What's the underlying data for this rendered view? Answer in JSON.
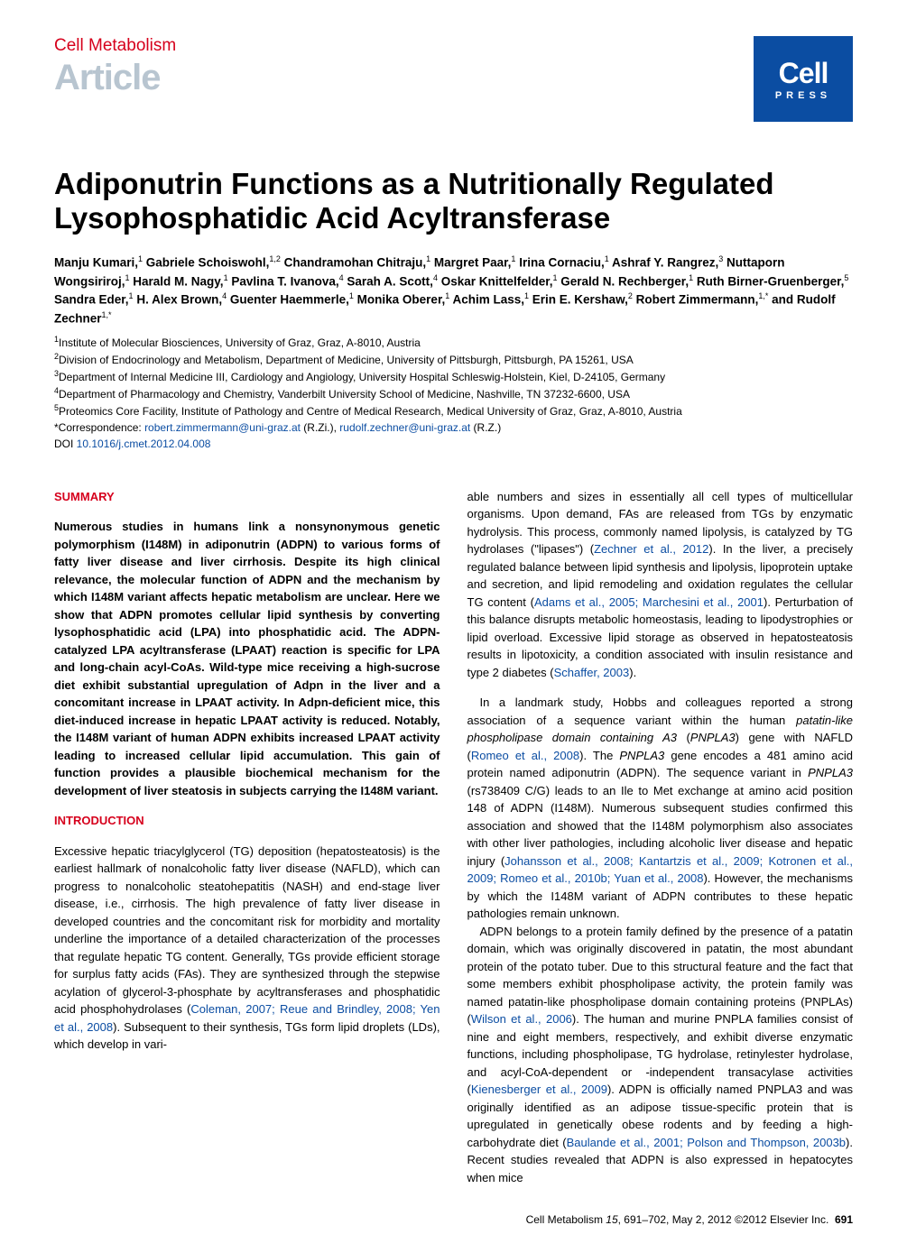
{
  "header": {
    "journal_name": "Cell Metabolism",
    "article_label": "Article",
    "logo_main": "Cell",
    "logo_sub": "PRESS"
  },
  "title": "Adiponutrin Functions as a Nutritionally Regulated Lysophosphatidic Acid Acyltransferase",
  "authors_html": "Manju Kumari,<sup>1</sup> Gabriele Schoiswohl,<sup>1,2</sup> Chandramohan Chitraju,<sup>1</sup> Margret Paar,<sup>1</sup> Irina Cornaciu,<sup>1</sup> Ashraf Y. Rangrez,<sup>3</sup> Nuttaporn Wongsiriroj,<sup>1</sup> Harald M. Nagy,<sup>1</sup> Pavlina T. Ivanova,<sup>4</sup> Sarah A. Scott,<sup>4</sup> Oskar Knittelfelder,<sup>1</sup> Gerald N. Rechberger,<sup>1</sup> Ruth Birner-Gruenberger,<sup>5</sup> Sandra Eder,<sup>1</sup> H. Alex Brown,<sup>4</sup> Guenter Haemmerle,<sup>1</sup> Monika Oberer,<sup>1</sup> Achim Lass,<sup>1</sup> Erin E. Kershaw,<sup>2</sup> Robert Zimmermann,<sup>1,*</sup> and Rudolf Zechner<sup>1,*</sup>",
  "affiliations": {
    "a1": "Institute of Molecular Biosciences, University of Graz, Graz, A-8010, Austria",
    "a2": "Division of Endocrinology and Metabolism, Department of Medicine, University of Pittsburgh, Pittsburgh, PA 15261, USA",
    "a3": "Department of Internal Medicine III, Cardiology and Angiology, University Hospital Schleswig-Holstein, Kiel, D-24105, Germany",
    "a4": "Department of Pharmacology and Chemistry, Vanderbilt University School of Medicine, Nashville, TN 37232-6600, USA",
    "a5": "Proteomics Core Facility, Institute of Pathology and Centre of Medical Research, Medical University of Graz, Graz, A-8010, Austria",
    "corr_prefix": "*Correspondence: ",
    "corr_email1": "robert.zimmermann@uni-graz.at",
    "corr_mid": " (R.Zi.), ",
    "corr_email2": "rudolf.zechner@uni-graz.at",
    "corr_suffix": " (R.Z.)",
    "doi_prefix": "DOI ",
    "doi": "10.1016/j.cmet.2012.04.008"
  },
  "sections": {
    "summary_heading": "SUMMARY",
    "summary_text": "Numerous studies in humans link a nonsynonymous genetic polymorphism (I148M) in adiponutrin (ADPN) to various forms of fatty liver disease and liver cirrhosis. Despite its high clinical relevance, the molecular function of ADPN and the mechanism by which I148M variant affects hepatic metabolism are unclear. Here we show that ADPN promotes cellular lipid synthesis by converting lysophosphatidic acid (LPA) into phosphatidic acid. The ADPN-catalyzed LPA acyltransferase (LPAAT) reaction is specific for LPA and long-chain acyl-CoAs. Wild-type mice receiving a high-sucrose diet exhibit substantial upregulation of Adpn in the liver and a concomitant increase in LPAAT activity. In Adpn-deficient mice, this diet-induced increase in hepatic LPAAT activity is reduced. Notably, the I148M variant of human ADPN exhibits increased LPAAT activity leading to increased cellular lipid accumulation. This gain of function provides a plausible biochemical mechanism for the development of liver steatosis in subjects carrying the I148M variant.",
    "intro_heading": "INTRODUCTION",
    "intro_p1_a": "Excessive hepatic triacylglycerol (TG) deposition (hepatosteatosis) is the earliest hallmark of nonalcoholic fatty liver disease (NAFLD), which can progress to nonalcoholic steatohepatitis (NASH) and end-stage liver disease, i.e., cirrhosis. The high prevalence of fatty liver disease in developed countries and the concomitant risk for morbidity and mortality underline the importance of a detailed characterization of the processes that regulate hepatic TG content. Generally, TGs provide efficient storage for surplus fatty acids (FAs). They are synthesized through the stepwise acylation of glycerol-3-phosphate by acyltransferases and phosphatidic acid phosphohydrolases (",
    "intro_p1_ref": "Coleman, 2007; Reue and Brindley, 2008; Yen et al., 2008",
    "intro_p1_b": "). Subsequent to their synthesis, TGs form lipid droplets (LDs), which develop in vari-",
    "col2_p1_a": "able numbers and sizes in essentially all cell types of multicellular organisms. Upon demand, FAs are released from TGs by enzymatic hydrolysis. This process, commonly named lipolysis, is catalyzed by TG hydrolases (\"lipases\") (",
    "col2_p1_ref1": "Zechner et al., 2012",
    "col2_p1_b": "). In the liver, a precisely regulated balance between lipid synthesis and lipolysis, lipoprotein uptake and secretion, and lipid remodeling and oxidation regulates the cellular TG content (",
    "col2_p1_ref2": "Adams et al., 2005; Marchesini et al., 2001",
    "col2_p1_c": "). Perturbation of this balance disrupts metabolic homeostasis, leading to lipodystrophies or lipid overload. Excessive lipid storage as observed in hepatosteatosis results in lipotoxicity, a condition associated with insulin resistance and type 2 diabetes (",
    "col2_p1_ref3": "Schaffer, 2003",
    "col2_p1_d": ").",
    "col2_p2_a": "In a landmark study, Hobbs and colleagues reported a strong association of a sequence variant within the human ",
    "col2_p2_i1": "patatin-like phospholipase domain containing A3",
    "col2_p2_b": " (",
    "col2_p2_i2": "PNPLA3",
    "col2_p2_c": ") gene with NAFLD (",
    "col2_p2_ref1": "Romeo et al., 2008",
    "col2_p2_d": "). The ",
    "col2_p2_i3": "PNPLA3",
    "col2_p2_e": " gene encodes a 481 amino acid protein named adiponutrin (ADPN). The sequence variant in ",
    "col2_p2_i4": "PNPLA3",
    "col2_p2_f": " (rs738409 C/G) leads to an Ile to Met exchange at amino acid position 148 of ADPN (I148M). Numerous subsequent studies confirmed this association and showed that the I148M polymorphism also associates with other liver pathologies, including alcoholic liver disease and hepatic injury (",
    "col2_p2_ref2": "Johansson et al., 2008; Kantartzis et al., 2009; Kotronen et al., 2009; Romeo et al., 2010b; Yuan et al., 2008",
    "col2_p2_g": "). However, the mechanisms by which the I148M variant of ADPN contributes to these hepatic pathologies remain unknown.",
    "col2_p3_a": "ADPN belongs to a protein family defined by the presence of a patatin domain, which was originally discovered in patatin, the most abundant protein of the potato tuber. Due to this structural feature and the fact that some members exhibit phospholipase activity, the protein family was named patatin-like phospholipase domain containing proteins (PNPLAs) (",
    "col2_p3_ref1": "Wilson et al., 2006",
    "col2_p3_b": "). The human and murine PNPLA families consist of nine and eight members, respectively, and exhibit diverse enzymatic functions, including phospholipase, TG hydrolase, retinylester hydrolase, and acyl-CoA-dependent or -independent transacylase activities (",
    "col2_p3_ref2": "Kienesberger et al., 2009",
    "col2_p3_c": "). ADPN is officially named PNPLA3 and was originally identified as an adipose tissue-specific protein that is upregulated in genetically obese rodents and by feeding a high-carbohydrate diet (",
    "col2_p3_ref3": "Baulande et al., 2001; Polson and Thompson, 2003b",
    "col2_p3_d": "). Recent studies revealed that ADPN is also expressed in hepatocytes when mice"
  },
  "footer": {
    "citation": "Cell Metabolism ",
    "vol": "15",
    "pages": ", 691–702, May 2, 2012 ©2012 Elsevier Inc.",
    "page_num": "691"
  },
  "colors": {
    "brand_red": "#d6001c",
    "brand_blue": "#0b4da2",
    "light_gray": "#b8c5d0"
  }
}
